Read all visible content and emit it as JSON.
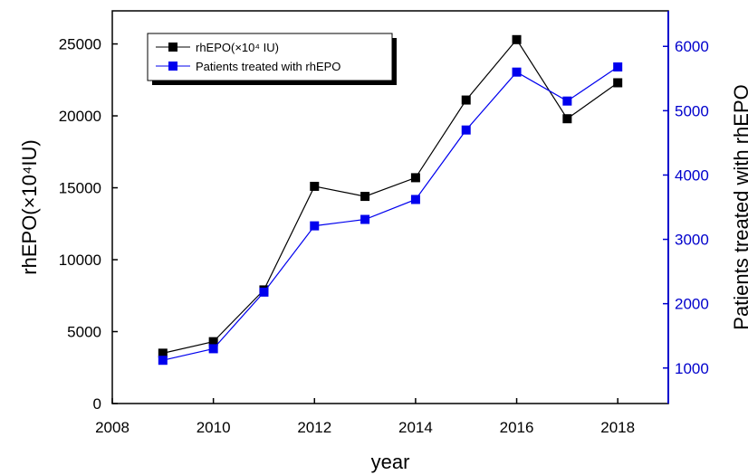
{
  "chart_data": {
    "type": "line",
    "xlabel": "year",
    "y_left_label": "rhEPO(×10⁴IU)",
    "y_right_label": "Patients treated with rhEPO",
    "xlim": [
      2008,
      2019
    ],
    "ylim_left": [
      0,
      27300
    ],
    "ylim_right": [
      448,
      6552
    ],
    "x_ticks": [
      2008,
      2010,
      2012,
      2014,
      2016,
      2018
    ],
    "y_left_ticks": [
      0,
      5000,
      10000,
      15000,
      20000,
      25000
    ],
    "y_right_ticks": [
      1000,
      2000,
      3000,
      4000,
      5000,
      6000
    ],
    "grid": false,
    "legend_position": "top-left",
    "series": [
      {
        "name": "rhEPO(×10⁴ IU)",
        "axis": "left",
        "color": "#000000",
        "x": [
          2009,
          2010,
          2011,
          2012,
          2013,
          2014,
          2015,
          2016,
          2017,
          2018
        ],
        "values": [
          3500,
          4300,
          7900,
          15100,
          14400,
          15700,
          21100,
          25300,
          19800,
          22300
        ]
      },
      {
        "name": "Patients treated with rhEPO",
        "axis": "right",
        "color": "#0000ee",
        "x": [
          2009,
          2010,
          2011,
          2012,
          2013,
          2014,
          2015,
          2016,
          2017,
          2018
        ],
        "values": [
          1120,
          1300,
          2180,
          3210,
          3310,
          3620,
          4700,
          5600,
          5150,
          5680
        ]
      }
    ]
  }
}
